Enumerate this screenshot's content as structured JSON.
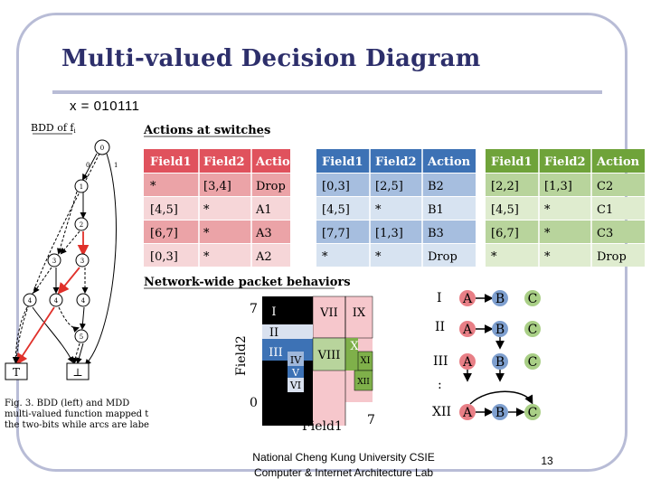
{
  "slide": {
    "title": "Multi-valued Decision Diagram",
    "subtitle": "x = 010111",
    "footer_line1": "National Cheng Kung University CSIE",
    "footer_line2": "Computer & Internet Architecture Lab",
    "page_number": "13"
  },
  "bdd": {
    "label": "BDD of f",
    "label_sub": "i",
    "edge_label_0": "0",
    "edge_label_1": "1",
    "nodes": [
      "0",
      "1",
      "2",
      "3",
      "3",
      "4",
      "4",
      "4",
      "5"
    ],
    "terminal_true": "T",
    "terminal_false": "⊥",
    "caption_line1": "Fig. 3.   BDD (left) and MDD",
    "caption_line2": "multi-valued function mapped t",
    "caption_line3": "the two-bits while arcs are labe"
  },
  "actions": {
    "heading": "Actions at switches",
    "tables": [
      {
        "headers": [
          "Field1",
          "Field2",
          "Action"
        ],
        "rows": [
          [
            "*",
            "[3,4]",
            "Drop"
          ],
          [
            "[4,5]",
            "*",
            "A1"
          ],
          [
            "[6,7]",
            "*",
            "A3"
          ],
          [
            "[0,3]",
            "*",
            "A2"
          ]
        ],
        "colors": {
          "header": "#e0525d",
          "dark": "#eba3a7",
          "light": "#f6d6d8"
        }
      },
      {
        "headers": [
          "Field1",
          "Field2",
          "Action"
        ],
        "rows": [
          [
            "[0,3]",
            "[2,5]",
            "B2"
          ],
          [
            "[4,5]",
            "*",
            "B1"
          ],
          [
            "[7,7]",
            "[1,3]",
            "B3"
          ],
          [
            "*",
            "*",
            "Drop"
          ]
        ],
        "colors": {
          "header": "#3d72b5",
          "dark": "#a6bedf",
          "light": "#d7e3f1"
        }
      },
      {
        "headers": [
          "Field1",
          "Field2",
          "Action"
        ],
        "rows": [
          [
            "[2,2]",
            "[1,3]",
            "C2"
          ],
          [
            "[4,5]",
            "*",
            "C1"
          ],
          [
            "[6,7]",
            "*",
            "C3"
          ],
          [
            "*",
            "*",
            "Drop"
          ]
        ],
        "colors": {
          "header": "#6fa33a",
          "dark": "#b8d49c",
          "light": "#dfeccf"
        }
      }
    ]
  },
  "network": {
    "heading": "Network-wide packet behaviors",
    "grid": {
      "y_axis_label": "Field2",
      "x_axis_label": "Field1",
      "y_max_label": "7",
      "y_min_label": "0",
      "x_min_label": "0",
      "x_max_label": "7",
      "region_labels": [
        "I",
        "II",
        "III",
        "IV",
        "V",
        "VI",
        "VII",
        "VIII",
        "IX",
        "X",
        "XI",
        "XII"
      ]
    },
    "paths": {
      "row_labels": [
        "I",
        "II",
        "III",
        ":",
        "XII"
      ],
      "node_labels": [
        "A",
        "B",
        "C"
      ],
      "colors": {
        "A": "#e87f86",
        "B": "#7e9fcf",
        "C": "#a9cf86"
      }
    }
  }
}
